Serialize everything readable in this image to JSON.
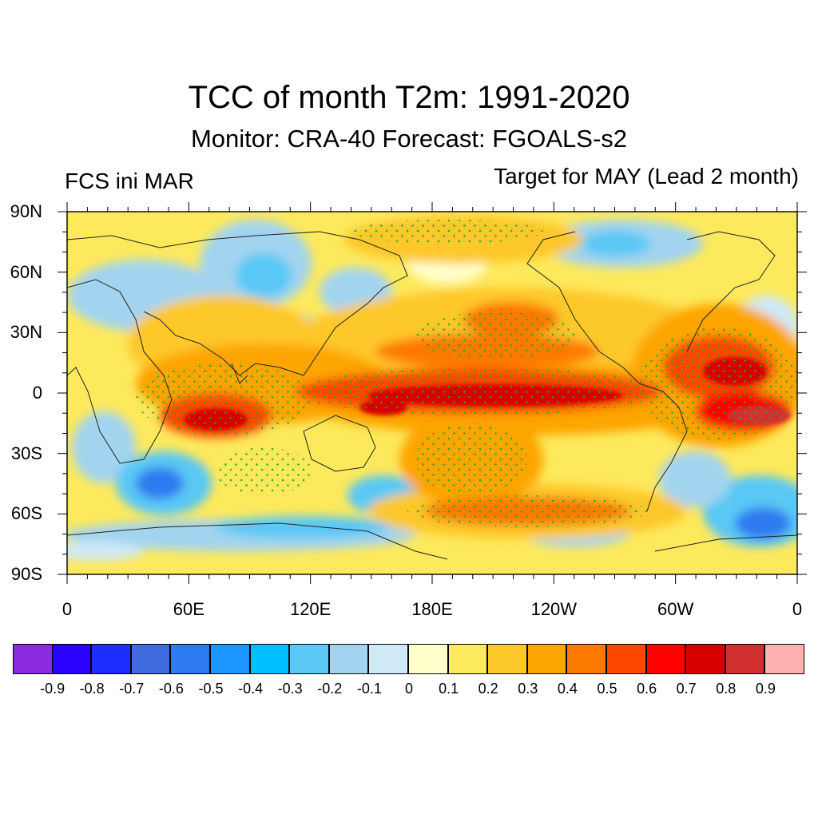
{
  "title": "TCC of month T2m: 1991-2020",
  "subtitle": "Monitor: CRA-40   Forecast: FGOALS-s2",
  "left_label": "FCS ini MAR",
  "right_label": "Target for MAY (Lead 2 month)",
  "map": {
    "lat_labels": [
      "90N",
      "60N",
      "30N",
      "0",
      "30S",
      "60S",
      "90S"
    ],
    "lon_labels": [
      "0",
      "60E",
      "120E",
      "180E",
      "120W",
      "60W",
      "0"
    ],
    "projection": "cylindrical equidistant, 0 to 360 longitude",
    "stipple_color": "#22aa22"
  },
  "colorbar": {
    "colors": [
      "#8a2be2",
      "#2a00ff",
      "#1e2eff",
      "#3f6ae0",
      "#2e7af0",
      "#1e96ff",
      "#00bfff",
      "#5ac8f5",
      "#a2d4f0",
      "#cfe9f7",
      "#ffffcc",
      "#fde95c",
      "#fdc82a",
      "#fda500",
      "#fd7a00",
      "#fd4800",
      "#ff0000",
      "#d60000",
      "#d03030",
      "#ffb0b0"
    ],
    "labels": [
      "-0.9",
      "-0.8",
      "-0.7",
      "-0.6",
      "-0.5",
      "-0.4",
      "-0.3",
      "-0.2",
      "-0.1",
      "0",
      "0.1",
      "0.2",
      "0.3",
      "0.4",
      "0.5",
      "0.6",
      "0.7",
      "0.8",
      "0.9"
    ]
  }
}
